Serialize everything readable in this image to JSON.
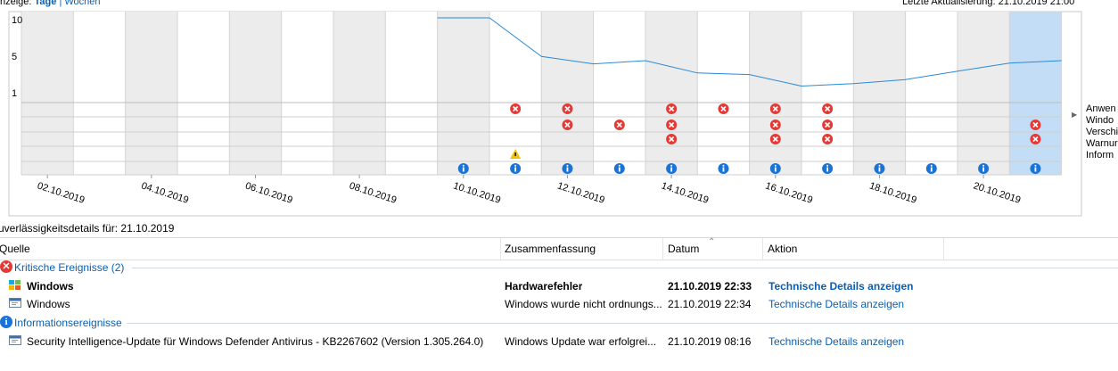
{
  "header": {
    "view_prefix": "nzeige: ",
    "view_days": "Tage",
    "view_separator": " | ",
    "view_weeks": "Wochen",
    "last_update": "Letzte Aktualisierung: 21.10.2019 21:00"
  },
  "chart": {
    "y_ticks": [
      "10",
      "5",
      "1"
    ],
    "date_labels": [
      "02.10.2019",
      "04.10.2019",
      "06.10.2019",
      "08.10.2019",
      "10.10.2019",
      "12.10.2019",
      "14.10.2019",
      "16.10.2019",
      "18.10.2019",
      "20.10.2019"
    ],
    "row_labels": [
      "Anwen",
      "Windo",
      "Verschi",
      "Warnur",
      "Inform"
    ],
    "colors": {
      "line": "#2b8ad6",
      "critical": "#e53935",
      "info": "#1a73d6",
      "warning": "#f2c200",
      "selected": "#c2ddf5",
      "shade": "#ececec"
    }
  },
  "chart_data": {
    "type": "line",
    "x": [
      "10.10.2019",
      "11.10.2019",
      "12.10.2019",
      "13.10.2019",
      "14.10.2019",
      "15.10.2019",
      "16.10.2019",
      "17.10.2019",
      "18.10.2019",
      "19.10.2019",
      "20.10.2019",
      "21.10.2019"
    ],
    "y": [
      10,
      10,
      5.3,
      4.4,
      4.8,
      3.3,
      3.1,
      1.7,
      2.0,
      2.5,
      3.5,
      4.5
    ],
    "ylim": [
      1,
      10
    ],
    "xlabel": "",
    "ylabel": "",
    "events": {
      "app_failures": [
        "11.10.2019",
        "12.10.2019",
        "14.10.2019",
        "15.10.2019",
        "16.10.2019",
        "17.10.2019"
      ],
      "windows_failures": [
        "12.10.2019",
        "13.10.2019",
        "14.10.2019",
        "16.10.2019",
        "17.10.2019",
        "21.10.2019"
      ],
      "misc_failures": [
        "14.10.2019",
        "16.10.2019",
        "17.10.2019",
        "21.10.2019"
      ],
      "warnings": [
        "11.10.2019"
      ],
      "information": [
        "10.10.2019",
        "11.10.2019",
        "12.10.2019",
        "13.10.2019",
        "14.10.2019",
        "15.10.2019",
        "16.10.2019",
        "17.10.2019",
        "18.10.2019",
        "19.10.2019",
        "20.10.2019",
        "21.10.2019"
      ]
    }
  },
  "details": {
    "title": "uverlässigkeitsdetails für: 21.10.2019",
    "columns": {
      "source": "Quelle",
      "summary": "Zusammenfassung",
      "date": "Datum",
      "action": "Aktion"
    },
    "groups": [
      {
        "label": "Kritische Ereignisse (2)",
        "icon": "critical-icon",
        "rows": [
          {
            "source": "Windows",
            "summary": "Hardwarefehler",
            "date": "21.10.2019 22:33",
            "action": "Technische Details anzeigen",
            "bold": true,
            "icon": "windows-update-icon"
          },
          {
            "source": "Windows",
            "summary": "Windows wurde nicht ordnungs...",
            "date": "21.10.2019 22:34",
            "action": "Technische Details anzeigen",
            "bold": false,
            "icon": "app-window-icon"
          }
        ]
      },
      {
        "label": "Informationsereignisse",
        "icon": "info-icon",
        "rows": [
          {
            "source": "Security Intelligence-Update für Windows Defender Antivirus - KB2267602 (Version 1.305.264.0)",
            "summary": "Windows Update war erfolgrei...",
            "date": "21.10.2019 08:16",
            "action": "Technische Details anzeigen",
            "bold": false,
            "icon": "app-window-icon"
          }
        ]
      }
    ]
  }
}
